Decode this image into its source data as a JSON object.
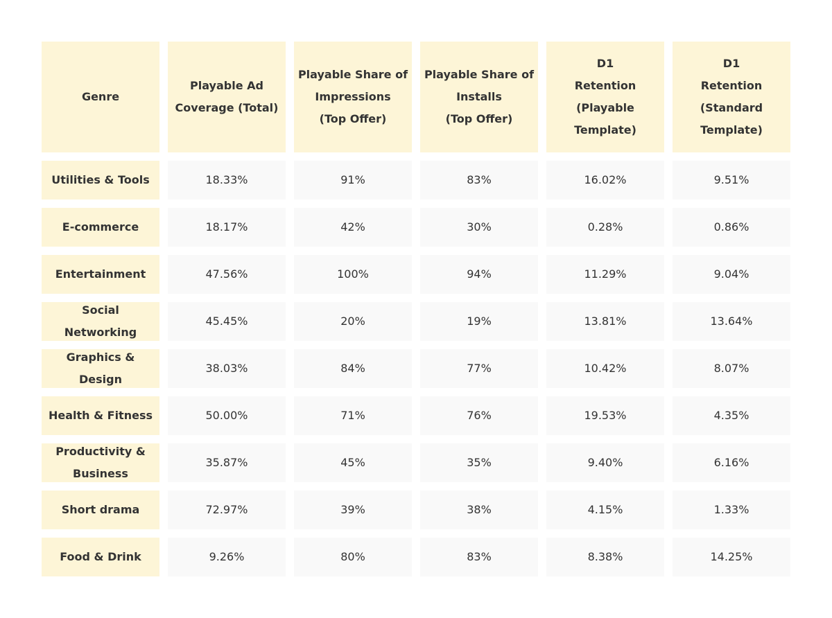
{
  "chart_data": {
    "type": "table",
    "columns": [
      "Genre",
      "Playable Ad\nCoverage (Total)",
      "Playable Share of\nImpressions\n(Top Offer)",
      "Playable Share of\nInstalls\n(Top Offer)",
      "D1\nRetention\n(Playable\nTemplate)",
      "D1\nRetention\n(Standard\nTemplate)"
    ],
    "rows": [
      {
        "genre": "Utilities & Tools",
        "values": [
          "18.33%",
          "91%",
          "83%",
          "16.02%",
          "9.51%"
        ]
      },
      {
        "genre": "E-commerce",
        "values": [
          "18.17%",
          "42%",
          "30%",
          "0.28%",
          "0.86%"
        ]
      },
      {
        "genre": "Entertainment",
        "values": [
          "47.56%",
          "100%",
          "94%",
          "11.29%",
          "9.04%"
        ]
      },
      {
        "genre": "Social\nNetworking",
        "values": [
          "45.45%",
          "20%",
          "19%",
          "13.81%",
          "13.64%"
        ]
      },
      {
        "genre": "Graphics &\nDesign",
        "values": [
          "38.03%",
          "84%",
          "77%",
          "10.42%",
          "8.07%"
        ]
      },
      {
        "genre": "Health & Fitness",
        "values": [
          "50.00%",
          "71%",
          "76%",
          "19.53%",
          "4.35%"
        ]
      },
      {
        "genre": "Productivity &\nBusiness",
        "values": [
          "35.87%",
          "45%",
          "35%",
          "9.40%",
          "6.16%"
        ]
      },
      {
        "genre": "Short drama",
        "values": [
          "72.97%",
          "39%",
          "38%",
          "4.15%",
          "1.33%"
        ]
      },
      {
        "genre": "Food & Drink",
        "values": [
          "9.26%",
          "80%",
          "83%",
          "8.38%",
          "14.25%"
        ]
      }
    ],
    "colors": {
      "header_bg": "#fdf5d7",
      "genre_bg": "#fdf5d7",
      "value_bg": "#f9f9f9",
      "text": "#333333"
    }
  }
}
